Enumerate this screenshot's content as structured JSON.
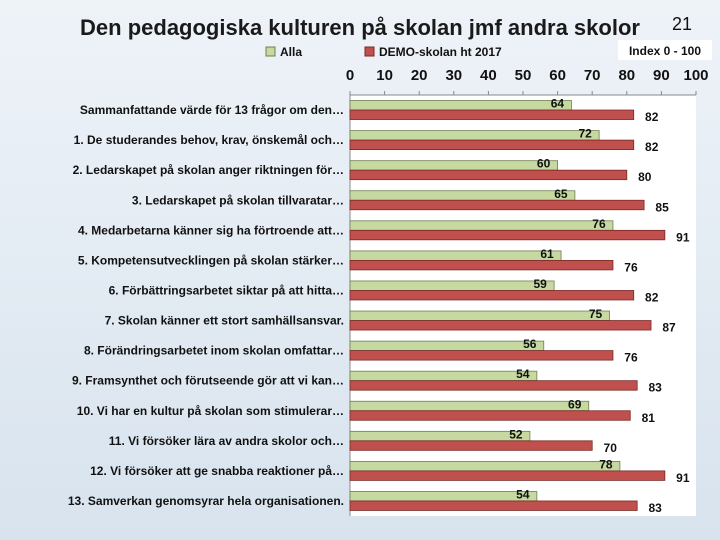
{
  "slide_number": "21",
  "colors": {
    "series_all": "#c5d9a0",
    "series_all_stroke": "#6f7f4f",
    "series_demo": "#c0504d",
    "series_demo_stroke": "#7a2826",
    "plot_bg": "#ffffff"
  },
  "chart_data": {
    "type": "bar",
    "orientation": "horizontal",
    "title": "Den pedagogiska kulturen på skolan jmf andra skolor",
    "annotation": "Index 0 - 100",
    "xlim": [
      0,
      100
    ],
    "ticks": [
      "0",
      "10",
      "20",
      "30",
      "40",
      "50",
      "60",
      "70",
      "80",
      "90",
      "100"
    ],
    "axis_position": "top",
    "legend_position": "top",
    "categories": [
      "Sammanfattande värde för 13 frågor om den…",
      "1. De studerandes behov, krav, önskemål och…",
      "2.   Ledarskapet på skolan anger riktningen för…",
      "3.   Ledarskapet på skolan tillvaratar…",
      "4. Medarbetarna känner sig ha förtroende att…",
      "5.   Kompetensutvecklingen på skolan stärker…",
      "6.   Förbättringsarbetet siktar på att hitta…",
      "7.   Skolan känner ett stort samhällsansvar.",
      "8.   Förändringsarbetet inom skolan omfattar…",
      "9.   Framsynthet och förutseende gör att vi kan…",
      "10.   Vi har en kultur på skolan som stimulerar…",
      "11. Vi försöker lära av andra skolor och…",
      "12. Vi försöker att ge snabba reaktioner på…",
      "13. Samverkan genomsyrar hela organisationen."
    ],
    "series": [
      {
        "name": "Alla",
        "values": [
          64,
          72,
          60,
          65,
          76,
          61,
          59,
          75,
          56,
          54,
          69,
          52,
          78,
          54
        ]
      },
      {
        "name": "DEMO-skolan ht 2017",
        "values": [
          82,
          82,
          80,
          85,
          91,
          76,
          82,
          87,
          76,
          83,
          81,
          70,
          91,
          83
        ]
      }
    ]
  }
}
